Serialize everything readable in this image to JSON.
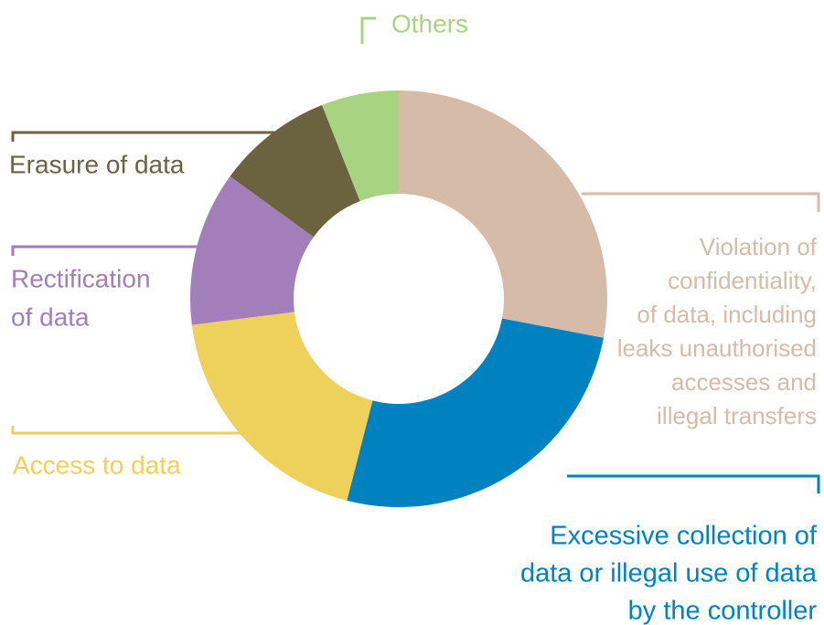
{
  "chart_data": {
    "type": "donut",
    "categories": [
      [
        "Violation of",
        "confidentiality,",
        "of data, including",
        "leaks unauthorised",
        "accesses and",
        "illegal transfers"
      ],
      [
        "Excessive collection of",
        "data or illegal use of data",
        "by the controller"
      ],
      [
        "Access to data"
      ],
      [
        "Rectification",
        "of data"
      ],
      [
        "Erasure of data"
      ],
      [
        "Others"
      ]
    ],
    "values": [
      28,
      26,
      19,
      12,
      9,
      6
    ],
    "colors": [
      "#d5bba8",
      "#0082c0",
      "#edd15a",
      "#a27fba",
      "#6b6240",
      "#a8d482"
    ]
  }
}
